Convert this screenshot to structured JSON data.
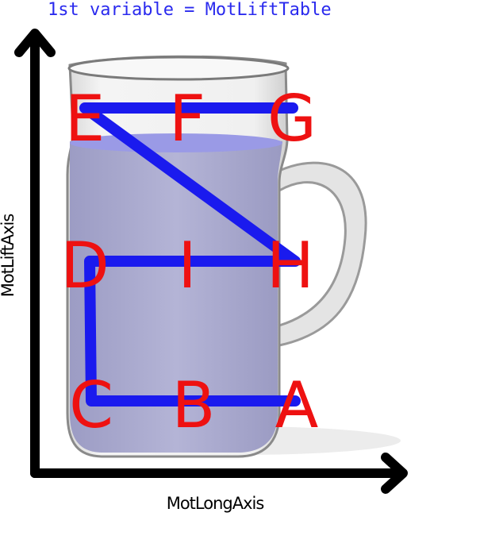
{
  "title": "1st variable = MotLiftTable",
  "axes": {
    "x_label": "MotLongAxis",
    "y_label": "MotLiftAxis"
  },
  "colors": {
    "title": "#2a2aee",
    "path": "#1a1aee",
    "letters": "#ee1111",
    "axis": "#000000",
    "liquid": "#a9a9cf"
  },
  "points": [
    {
      "id": "A",
      "label": "A"
    },
    {
      "id": "B",
      "label": "B"
    },
    {
      "id": "C",
      "label": "C"
    },
    {
      "id": "D",
      "label": "D"
    },
    {
      "id": "I",
      "label": "I"
    },
    {
      "id": "H",
      "label": "H"
    },
    {
      "id": "E",
      "label": "E"
    },
    {
      "id": "F",
      "label": "F"
    },
    {
      "id": "G",
      "label": "G"
    }
  ],
  "path_order": [
    "A",
    "C",
    "D",
    "H",
    "E",
    "G"
  ],
  "illustration": "jug-icon"
}
